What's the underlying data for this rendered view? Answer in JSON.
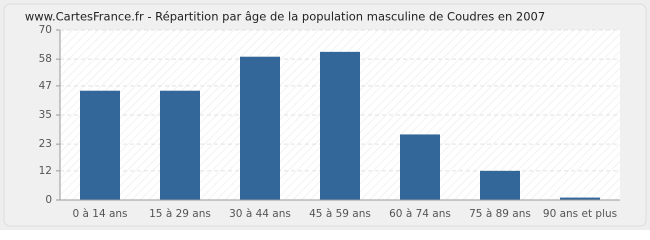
{
  "chart_data": {
    "type": "bar",
    "title": "www.CartesFrance.fr - Répartition par âge de la population masculine de Coudres en 2007",
    "categories": [
      "0 à 14 ans",
      "15 à 29 ans",
      "30 à 44 ans",
      "45 à 59 ans",
      "60 à 74 ans",
      "75 à 89 ans",
      "90 ans et plus"
    ],
    "values": [
      45,
      45,
      59,
      61,
      27,
      12,
      1
    ],
    "color": "#336699",
    "ylim": [
      0,
      70
    ],
    "yticks": [
      0,
      12,
      23,
      35,
      47,
      58,
      70
    ],
    "grid": true
  }
}
